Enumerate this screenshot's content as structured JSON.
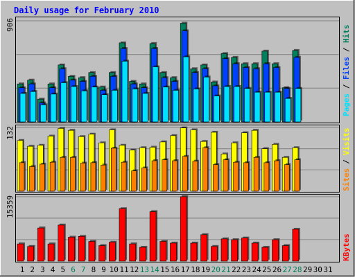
{
  "chart_data": [
    {
      "type": "bar",
      "title": "Daily usage for February 2010",
      "panel": "Hits / Files / Pages",
      "ymax_label": "906",
      "ylim": [
        0,
        906
      ],
      "right_labels": [
        "Pages",
        "Files",
        "Hits"
      ],
      "categories": [
        "1",
        "2",
        "3",
        "4",
        "5",
        "6",
        "7",
        "8",
        "9",
        "10",
        "11",
        "12",
        "13",
        "14",
        "15",
        "16",
        "17",
        "18",
        "19",
        "20",
        "21",
        "22",
        "23",
        "24",
        "25",
        "26",
        "27",
        "28",
        "29",
        "30",
        "31"
      ],
      "weekend_days": [
        6,
        7,
        13,
        14,
        20,
        21,
        27,
        28
      ],
      "series": [
        {
          "name": "Hits",
          "values": [
            340,
            374,
            204,
            340,
            510,
            408,
            396,
            442,
            312,
            442,
            708,
            363,
            340,
            702,
            442,
            396,
            884,
            476,
            510,
            357,
            612,
            578,
            521,
            521,
            634,
            521,
            306,
            640,
            0,
            0,
            0
          ]
        },
        {
          "name": "Files",
          "values": [
            306,
            340,
            170,
            306,
            476,
            374,
            363,
            408,
            283,
            408,
            657,
            340,
            306,
            657,
            396,
            363,
            816,
            442,
            476,
            323,
            567,
            521,
            487,
            476,
            521,
            487,
            300,
            578,
            0,
            0,
            0
          ]
        },
        {
          "name": "Pages",
          "values": [
            255,
            272,
            153,
            249,
            351,
            317,
            278,
            312,
            244,
            283,
            544,
            295,
            255,
            493,
            312,
            283,
            583,
            295,
            402,
            232,
            317,
            317,
            300,
            266,
            266,
            266,
            210,
            300,
            0,
            0,
            0
          ]
        }
      ]
    },
    {
      "type": "bar",
      "panel": "Visits / Sites",
      "ymax_label": "132",
      "ylim": [
        0,
        132
      ],
      "right_labels": [
        "Sites",
        "/",
        "Visits"
      ],
      "series": [
        {
          "name": "Visits",
          "values": [
            105,
            93,
            95,
            114,
            130,
            126,
            113,
            118,
            100,
            127,
            95,
            85,
            90,
            91,
            102,
            115,
            131,
            127,
            103,
            122,
            77,
            100,
            121,
            126,
            88,
            97,
            70,
            90,
            0,
            0,
            0
          ]
        },
        {
          "name": "Sites",
          "values": [
            59,
            51,
            56,
            60,
            70,
            70,
            58,
            59,
            54,
            89,
            60,
            42,
            48,
            63,
            65,
            63,
            72,
            62,
            90,
            55,
            65,
            60,
            59,
            70,
            59,
            63,
            55,
            65,
            0,
            0,
            0
          ]
        }
      ]
    },
    {
      "type": "bar",
      "panel": "KBytes",
      "ymax_label": "15359",
      "ylim": [
        0,
        15359
      ],
      "right_labels": [
        "KBytes"
      ],
      "series": [
        {
          "name": "KBytes",
          "values": [
            4100,
            3500,
            7900,
            4100,
            8600,
            5700,
            5900,
            4700,
            3700,
            4500,
            12500,
            4100,
            3300,
            11800,
            4700,
            4300,
            15359,
            4300,
            6300,
            3500,
            5300,
            5100,
            5500,
            4300,
            3300,
            5100,
            3700,
            7600,
            0,
            0,
            0
          ]
        }
      ]
    }
  ],
  "colors": {
    "background": "#c0c0c0",
    "title": "#0000ff",
    "hits": "#00805c",
    "files": "#0040ff",
    "pages": "#00e0ff",
    "visits": "#ffff00",
    "sites": "#ff8000",
    "kbytes": "#ff0000",
    "weekday_label": "#000000",
    "weekend_label": "#00805c"
  }
}
